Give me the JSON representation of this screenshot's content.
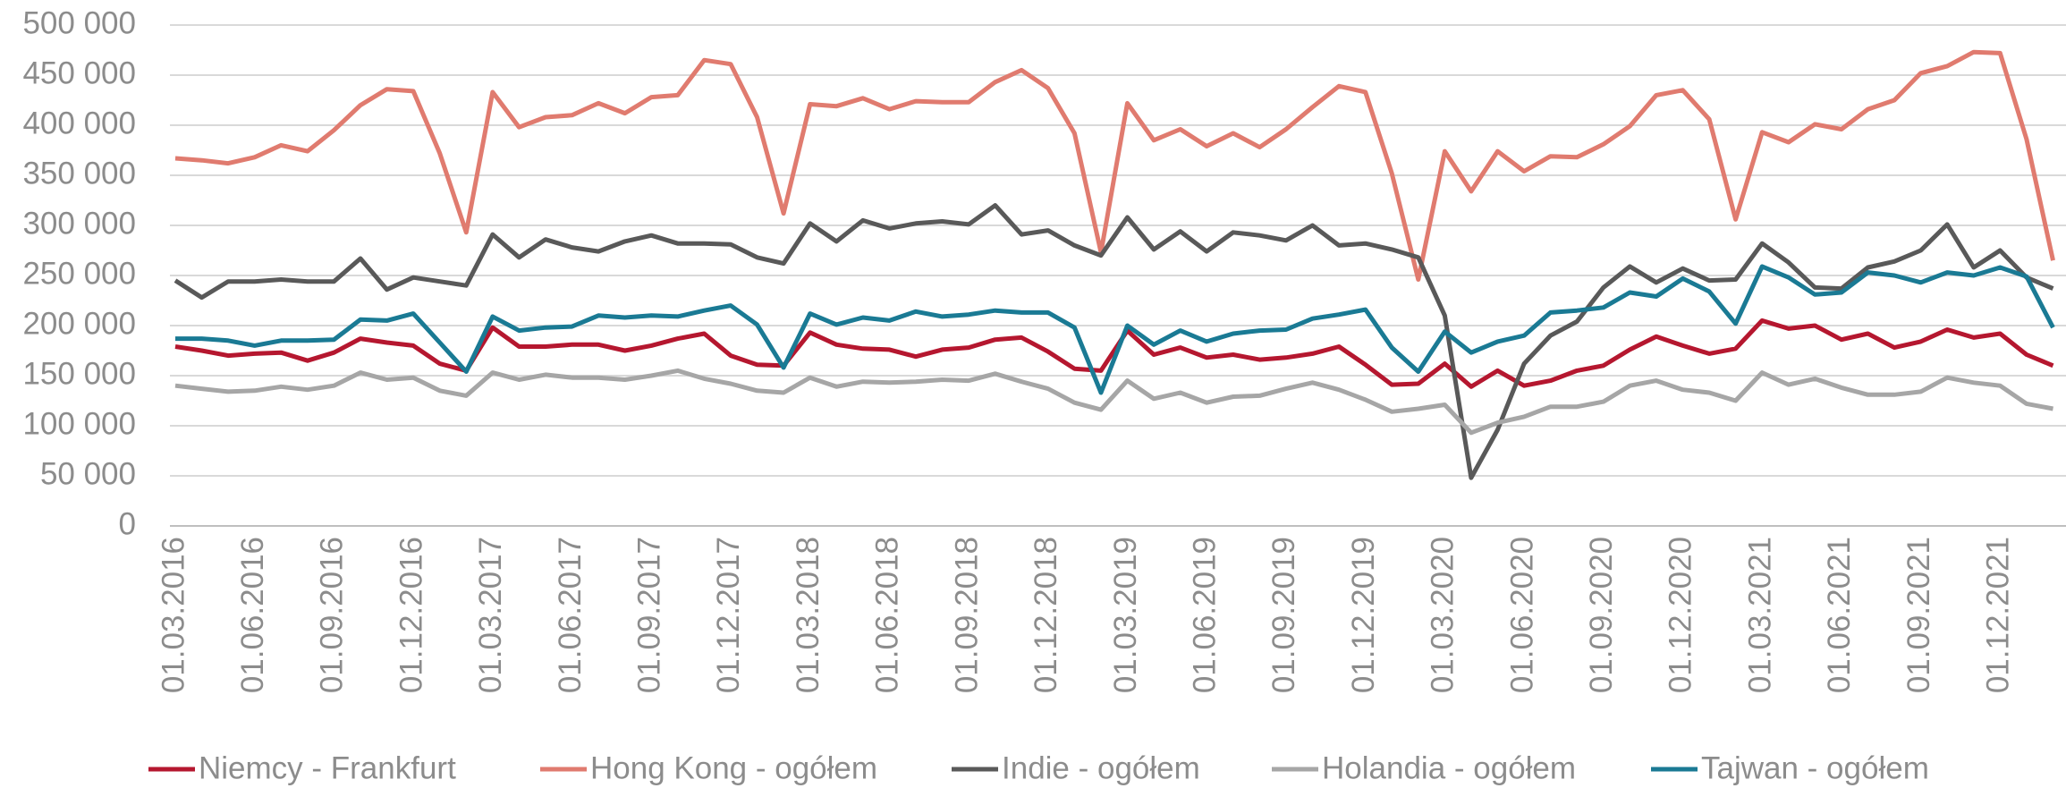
{
  "chart_data": {
    "type": "line",
    "categories": [
      "01.03.2016",
      null,
      null,
      "01.06.2016",
      null,
      null,
      "01.09.2016",
      null,
      null,
      "01.12.2016",
      null,
      null,
      "01.03.2017",
      null,
      null,
      "01.06.2017",
      null,
      null,
      "01.09.2017",
      null,
      null,
      "01.12.2017",
      null,
      null,
      "01.03.2018",
      null,
      null,
      "01.06.2018",
      null,
      null,
      "01.09.2018",
      null,
      null,
      "01.12.2018",
      null,
      null,
      "01.03.2019",
      null,
      null,
      "01.06.2019",
      null,
      null,
      "01.09.2019",
      null,
      null,
      "01.12.2019",
      null,
      null,
      "01.03.2020",
      null,
      null,
      "01.06.2020",
      null,
      null,
      "01.09.2020",
      null,
      null,
      "01.12.2020",
      null,
      null,
      "01.03.2021",
      null,
      null,
      "01.06.2021",
      null,
      null,
      "01.09.2021",
      null,
      null,
      "01.12.2021",
      null,
      null
    ],
    "series": [
      {
        "name": "Niemcy - Frankfurt",
        "color": "#b5172f",
        "values": [
          179000,
          175000,
          170000,
          172000,
          173000,
          165000,
          173000,
          187000,
          183000,
          180000,
          162000,
          155000,
          198000,
          179000,
          179000,
          181000,
          181000,
          175000,
          180000,
          187000,
          192000,
          170000,
          161000,
          160000,
          193000,
          181000,
          177000,
          176000,
          169000,
          176000,
          178000,
          186000,
          188000,
          174000,
          157000,
          155000,
          195000,
          171000,
          178000,
          168000,
          171000,
          166000,
          168000,
          172000,
          179000,
          161000,
          141000,
          142000,
          162000,
          139000,
          155000,
          140000,
          145000,
          155000,
          160000,
          176000,
          189000,
          180000,
          172000,
          177000,
          205000,
          197000,
          200000,
          186000,
          192000,
          178000,
          184000,
          196000,
          188000,
          192000,
          171000,
          160000
        ]
      },
      {
        "name": "Hong Kong - ogółem",
        "color": "#e07b6f",
        "values": [
          367000,
          365000,
          362000,
          368000,
          380000,
          374000,
          395000,
          420000,
          436000,
          434000,
          372000,
          293000,
          433000,
          398000,
          408000,
          410000,
          422000,
          412000,
          428000,
          430000,
          465000,
          461000,
          408000,
          312000,
          421000,
          419000,
          427000,
          416000,
          424000,
          423000,
          423000,
          443000,
          455000,
          437000,
          392000,
          273000,
          422000,
          385000,
          396000,
          379000,
          392000,
          378000,
          396000,
          418000,
          439000,
          433000,
          352000,
          246000,
          374000,
          334000,
          374000,
          354000,
          369000,
          368000,
          381000,
          399000,
          430000,
          435000,
          406000,
          306000,
          393000,
          383000,
          401000,
          396000,
          416000,
          425000,
          452000,
          459000,
          473000,
          472000,
          386000,
          265000
        ]
      },
      {
        "name": "Indie - ogółem",
        "color": "#595959",
        "values": [
          245000,
          228000,
          244000,
          244000,
          246000,
          244000,
          244000,
          267000,
          236000,
          248000,
          244000,
          240000,
          291000,
          268000,
          286000,
          278000,
          274000,
          284000,
          290000,
          282000,
          282000,
          281000,
          268000,
          262000,
          302000,
          284000,
          305000,
          297000,
          302000,
          304000,
          301000,
          320000,
          291000,
          295000,
          280000,
          270000,
          308000,
          276000,
          294000,
          274000,
          293000,
          290000,
          285000,
          300000,
          280000,
          282000,
          276000,
          268000,
          210000,
          48000,
          96000,
          162000,
          190000,
          204000,
          238000,
          259000,
          243000,
          257000,
          245000,
          246000,
          282000,
          263000,
          238000,
          237000,
          258000,
          264000,
          275000,
          301000,
          258000,
          275000,
          248000,
          237000
        ]
      },
      {
        "name": "Holandia - ogółem",
        "color": "#a6a6a6",
        "values": [
          140000,
          137000,
          134000,
          135000,
          139000,
          136000,
          140000,
          153000,
          146000,
          148000,
          135000,
          130000,
          153000,
          146000,
          151000,
          148000,
          148000,
          146000,
          150000,
          155000,
          147000,
          142000,
          135000,
          133000,
          148000,
          139000,
          144000,
          143000,
          144000,
          146000,
          145000,
          152000,
          144000,
          137000,
          123000,
          116000,
          145000,
          127000,
          133000,
          123000,
          129000,
          130000,
          137000,
          143000,
          136000,
          126000,
          114000,
          117000,
          121000,
          93000,
          103000,
          109000,
          119000,
          119000,
          124000,
          140000,
          145000,
          136000,
          133000,
          125000,
          153000,
          141000,
          147000,
          138000,
          131000,
          131000,
          134000,
          148000,
          143000,
          140000,
          122000,
          117000
        ]
      },
      {
        "name": "Tajwan - ogółem",
        "color": "#1a7a94",
        "values": [
          187000,
          187000,
          185000,
          180000,
          185000,
          185000,
          186000,
          206000,
          205000,
          212000,
          183000,
          154000,
          209000,
          195000,
          198000,
          199000,
          210000,
          208000,
          210000,
          209000,
          215000,
          220000,
          201000,
          158000,
          212000,
          201000,
          208000,
          205000,
          214000,
          209000,
          211000,
          215000,
          213000,
          213000,
          198000,
          133000,
          200000,
          181000,
          195000,
          184000,
          192000,
          195000,
          196000,
          207000,
          211000,
          216000,
          178000,
          154000,
          194000,
          173000,
          184000,
          190000,
          213000,
          215000,
          218000,
          233000,
          229000,
          247000,
          234000,
          202000,
          259000,
          248000,
          231000,
          233000,
          253000,
          250000,
          243000,
          253000,
          250000,
          258000,
          249000,
          198000
        ]
      }
    ],
    "ylim": [
      0,
      500000
    ],
    "yticks": [
      0,
      {
        "value": 50000,
        "label": "50 000"
      },
      {
        "value": 100000,
        "label": "100 000"
      },
      {
        "value": 150000,
        "label": "150 000"
      },
      {
        "value": 200000,
        "label": "200 000"
      },
      {
        "value": 250000,
        "label": "250 000"
      },
      {
        "value": 300000,
        "label": "300 000"
      },
      {
        "value": 350000,
        "label": "350 000"
      },
      {
        "value": 400000,
        "label": "400 000"
      },
      {
        "value": 450000,
        "label": "450 000"
      },
      {
        "value": 500000,
        "label": "500 000"
      }
    ],
    "grid": true,
    "legend": "bottom"
  }
}
